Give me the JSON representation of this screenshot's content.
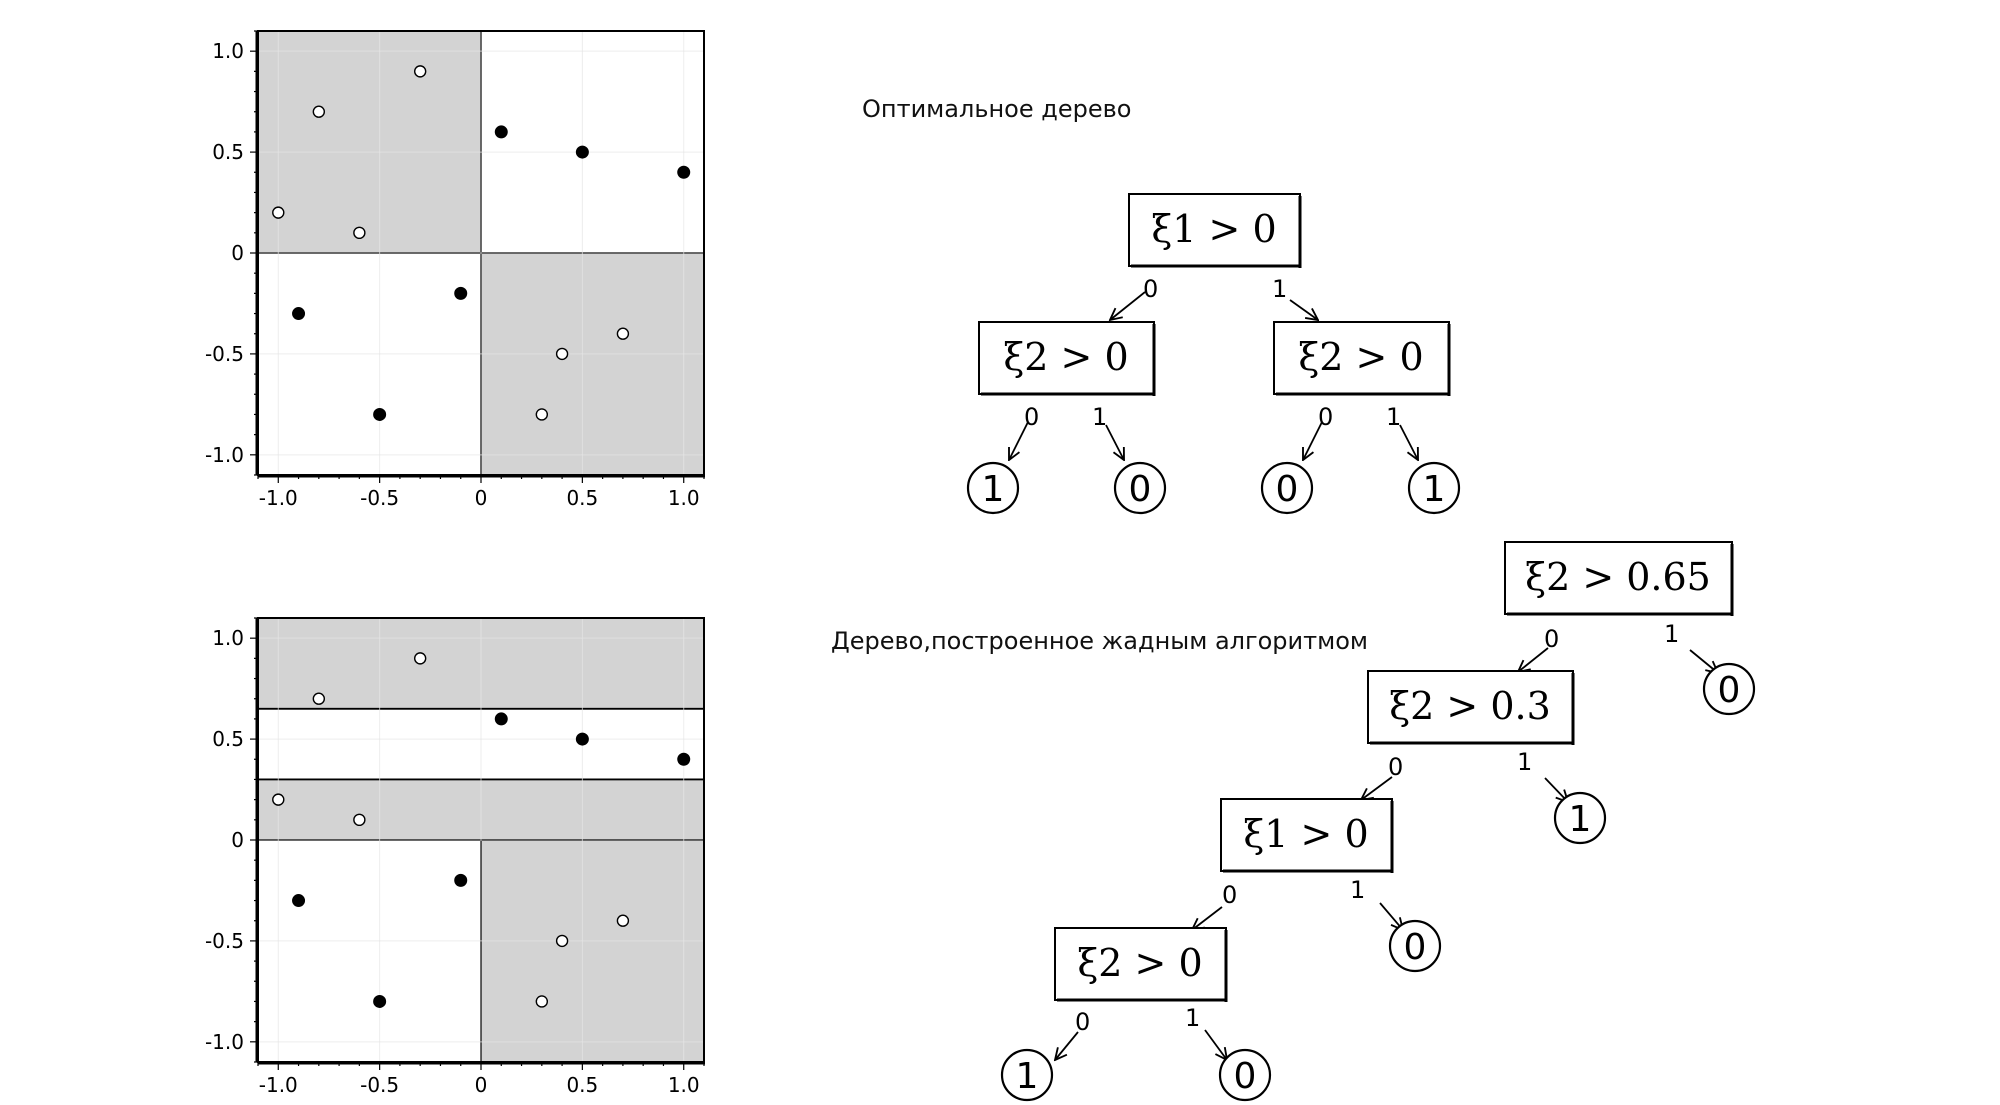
{
  "captions": {
    "optimal": "Оптимальное дерево",
    "greedy": "Дерево,построенное жадным алгоритмом"
  },
  "colors": {
    "shaded": "#d3d3d3",
    "grid": "#e6e6e6"
  },
  "chart_data": [
    {
      "type": "scatter",
      "title": "",
      "xlim": [
        -1.1,
        1.1
      ],
      "ylim": [
        -1.1,
        1.1
      ],
      "xticks": [
        "-1.0",
        "-0.5",
        "0",
        "0.5",
        "1.0"
      ],
      "yticks": [
        "-1.0",
        "-0.5",
        "0",
        "0.5",
        "1.0"
      ],
      "grid": true,
      "series": [
        {
          "values": [
            [
              0.1,
              0.6
            ],
            [
              0.5,
              0.5
            ],
            [
              1.0,
              0.4
            ],
            [
              -0.9,
              -0.3
            ],
            [
              -0.1,
              -0.2
            ],
            [
              -0.5,
              -0.8
            ]
          ]
        },
        {
          "values": [
            [
              -0.3,
              0.9
            ],
            [
              -0.8,
              0.7
            ],
            [
              -1.0,
              0.2
            ],
            [
              -0.6,
              0.1
            ],
            [
              0.7,
              -0.4
            ],
            [
              0.4,
              -0.5
            ],
            [
              0.3,
              -0.8
            ]
          ]
        }
      ],
      "regions": [
        {
          "x": [
            -1.1,
            0
          ],
          "y": [
            0,
            1.1
          ],
          "shaded": true
        },
        {
          "x": [
            0,
            1.1
          ],
          "y": [
            -1.1,
            0
          ],
          "shaded": true
        }
      ]
    },
    {
      "type": "scatter",
      "title": "",
      "xlim": [
        -1.1,
        1.1
      ],
      "ylim": [
        -1.1,
        1.1
      ],
      "xticks": [
        "-1.0",
        "-0.5",
        "0",
        "0.5",
        "1.0"
      ],
      "yticks": [
        "-1.0",
        "-0.5",
        "0",
        "0.5",
        "1.0"
      ],
      "grid": true,
      "series": [
        {
          "values": [
            [
              0.1,
              0.6
            ],
            [
              0.5,
              0.5
            ],
            [
              1.0,
              0.4
            ],
            [
              -0.9,
              -0.3
            ],
            [
              -0.1,
              -0.2
            ],
            [
              -0.5,
              -0.8
            ]
          ]
        },
        {
          "values": [
            [
              -0.3,
              0.9
            ],
            [
              -0.8,
              0.7
            ],
            [
              -1.0,
              0.2
            ],
            [
              -0.6,
              0.1
            ],
            [
              0.7,
              -0.4
            ],
            [
              0.4,
              -0.5
            ],
            [
              0.3,
              -0.8
            ]
          ]
        }
      ],
      "regions": [
        {
          "x": [
            -1.1,
            1.1
          ],
          "y": [
            0.65,
            1.1
          ],
          "shaded": true
        },
        {
          "x": [
            -1.1,
            1.1
          ],
          "y": [
            0.3,
            0.65
          ],
          "shaded": false
        },
        {
          "x": [
            -1.1,
            1.1
          ],
          "y": [
            0,
            0.3
          ],
          "shaded": true
        },
        {
          "x": [
            0,
            1.1
          ],
          "y": [
            -1.1,
            0
          ],
          "shaded": true
        },
        {
          "x": [
            -1.1,
            0
          ],
          "y": [
            -1.1,
            0
          ],
          "shaded": false
        }
      ]
    }
  ],
  "trees": {
    "optimal": {
      "root": "ξ1 > 0",
      "left": "ξ2 > 0",
      "right": "ξ2 > 0",
      "leaves": [
        "1",
        "0",
        "0",
        "1"
      ],
      "edge_labels": [
        "0",
        "1"
      ]
    },
    "greedy": {
      "nodes": [
        "ξ2 > 0.65",
        "ξ2 > 0.3",
        "ξ1 > 0",
        "ξ2 > 0"
      ],
      "leaves": [
        "0",
        "1",
        "0",
        "1",
        "0"
      ],
      "edge_labels": [
        "0",
        "1"
      ]
    }
  }
}
